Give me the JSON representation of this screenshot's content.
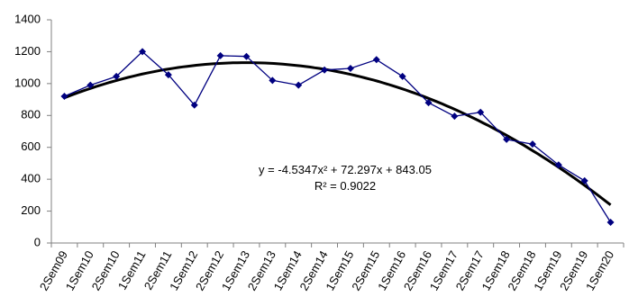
{
  "chart_data": {
    "type": "line",
    "categories": [
      "2Sem09",
      "1Sem10",
      "2Sem10",
      "1Sem11",
      "2Sem11",
      "1Sem12",
      "2Sem12",
      "1Sem13",
      "2Sem13",
      "1Sem14",
      "2Sem14",
      "1Sem15",
      "2Sem15",
      "1Sem16",
      "2Sem16",
      "1Sem17",
      "2Sem17",
      "1Sem18",
      "2Sem18",
      "1Sem19",
      "2Sem19",
      "1Sem20"
    ],
    "series": [
      {
        "values": [
          920,
          990,
          1045,
          1200,
          1055,
          865,
          1175,
          1170,
          1020,
          990,
          1085,
          1095,
          1150,
          1045,
          880,
          795,
          820,
          650,
          620,
          490,
          390,
          130
        ]
      }
    ],
    "trendline": {
      "type": "polynomial",
      "order": 2,
      "coefficients": [
        -4.5347,
        72.297,
        843.05
      ],
      "equation_label": "y = -4.5347x² + 72.297x + 843.05",
      "r2_label": "R² = 0.9022"
    },
    "ylim": [
      0,
      1400
    ],
    "yticks": [
      0,
      200,
      400,
      600,
      800,
      1000,
      1200,
      1400
    ],
    "grid": false,
    "colors": {
      "series": "#000080",
      "trend": "#000000",
      "axes": "#808080"
    }
  }
}
